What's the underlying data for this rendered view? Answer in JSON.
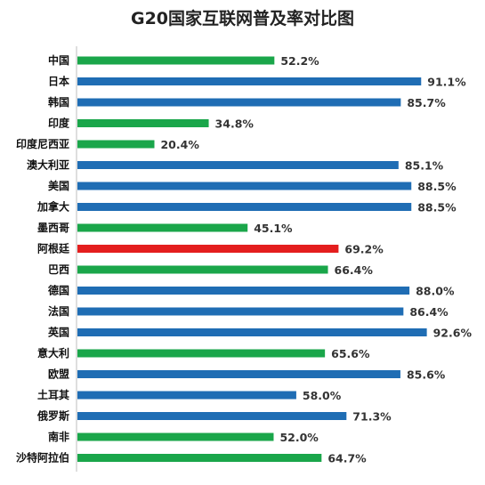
{
  "chart_data": {
    "type": "bar",
    "orientation": "horizontal",
    "title": "G20国家互联网普及率对比图",
    "categories": [
      "中国",
      "日本",
      "韩国",
      "印度",
      "印度尼西亚",
      "澳大利亚",
      "美国",
      "加拿大",
      "墨西哥",
      "阿根廷",
      "巴西",
      "德国",
      "法国",
      "英国",
      "意大利",
      "欧盟",
      "土耳其",
      "俄罗斯",
      "南非",
      "沙特阿拉伯"
    ],
    "values": [
      52.2,
      91.1,
      85.7,
      34.8,
      20.4,
      85.1,
      88.5,
      88.5,
      45.1,
      69.2,
      66.4,
      88.0,
      86.4,
      92.6,
      65.6,
      85.6,
      58.0,
      71.3,
      52.0,
      64.7
    ],
    "value_labels": [
      "52.2%",
      "91.1%",
      "85.7%",
      "34.8%",
      "20.4%",
      "85.1%",
      "88.5%",
      "88.5%",
      "45.1%",
      "69.2%",
      "66.4%",
      "88.0%",
      "86.4%",
      "92.6%",
      "65.6%",
      "85.6%",
      "58.0%",
      "71.3%",
      "52.0%",
      "64.7%"
    ],
    "colors": [
      "#1aa64a",
      "#1f6db4",
      "#1f6db4",
      "#1aa64a",
      "#1aa64a",
      "#1f6db4",
      "#1f6db4",
      "#1f6db4",
      "#1aa64a",
      "#e41e1e",
      "#1aa64a",
      "#1f6db4",
      "#1f6db4",
      "#1f6db4",
      "#1aa64a",
      "#1f6db4",
      "#1f6db4",
      "#1f6db4",
      "#1aa64a",
      "#1aa64a"
    ],
    "xlim": [
      0,
      100
    ],
    "grid": false,
    "legend": "none"
  }
}
